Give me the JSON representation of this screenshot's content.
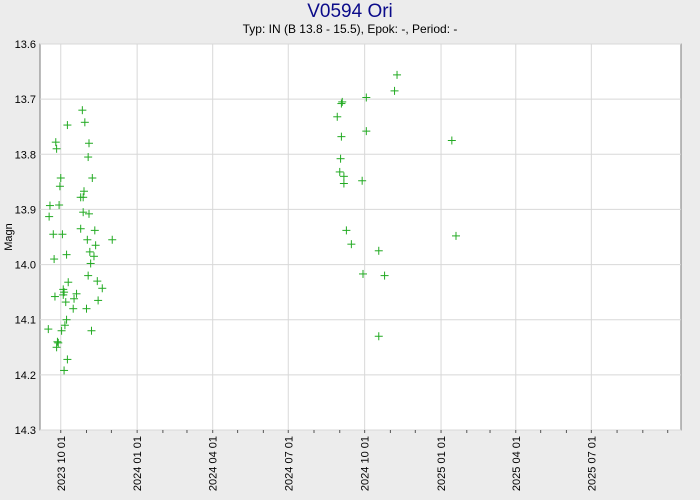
{
  "chart_data": {
    "type": "scatter",
    "title": "V0594 Ori",
    "subtitle": "Typ: IN (B 13.8 - 15.5), Epok: -, Period: -",
    "xlabel": "",
    "ylabel": "Magn",
    "x_is_date": true,
    "xlim": [
      "2023-09-06",
      "2025-10-17"
    ],
    "ylim": [
      13.6,
      14.3
    ],
    "y_inverted": true,
    "x_ticks": [
      "2023 10 01",
      "2024 01 01",
      "2024 04 01",
      "2024 07 01",
      "2024 10 01",
      "2025 01 01",
      "2025 04 01",
      "2025 07 01"
    ],
    "y_ticks": [
      "13.6",
      "13.7",
      "13.8",
      "13.9",
      "14.0",
      "14.1",
      "14.2",
      "14.3"
    ],
    "grid": true,
    "marker": "+",
    "marker_color": "#22aa22",
    "series": [
      {
        "points": [
          [
            "2023-09-16",
            14.117
          ],
          [
            "2023-09-17",
            13.913
          ],
          [
            "2023-09-18",
            13.893
          ],
          [
            "2023-09-22",
            13.945
          ],
          [
            "2023-09-23",
            13.99
          ],
          [
            "2023-09-24",
            14.058
          ],
          [
            "2023-09-25",
            13.778
          ],
          [
            "2023-09-26",
            13.79
          ],
          [
            "2023-09-26",
            14.15
          ],
          [
            "2023-09-27",
            14.14
          ],
          [
            "2023-09-28",
            14.142
          ],
          [
            "2023-09-29",
            13.892
          ],
          [
            "2023-09-30",
            13.858
          ],
          [
            "2023-10-01",
            13.843
          ],
          [
            "2023-10-02",
            14.12
          ],
          [
            "2023-10-03",
            13.945
          ],
          [
            "2023-10-04",
            14.045
          ],
          [
            "2023-10-04",
            14.055
          ],
          [
            "2023-10-05",
            14.192
          ],
          [
            "2023-10-05",
            14.05
          ],
          [
            "2023-10-06",
            14.11
          ],
          [
            "2023-10-07",
            14.068
          ],
          [
            "2023-10-08",
            13.982
          ],
          [
            "2023-10-08",
            14.1
          ],
          [
            "2023-10-09",
            13.747
          ],
          [
            "2023-10-09",
            14.172
          ],
          [
            "2023-10-10",
            14.032
          ],
          [
            "2023-10-16",
            14.08
          ],
          [
            "2023-10-17",
            14.062
          ],
          [
            "2023-10-20",
            14.053
          ],
          [
            "2023-10-25",
            13.878
          ],
          [
            "2023-10-25",
            13.935
          ],
          [
            "2023-10-27",
            13.72
          ],
          [
            "2023-10-28",
            13.878
          ],
          [
            "2023-10-28",
            13.905
          ],
          [
            "2023-10-29",
            13.867
          ],
          [
            "2023-10-30",
            13.742
          ],
          [
            "2023-11-01",
            14.08
          ],
          [
            "2023-11-02",
            13.955
          ],
          [
            "2023-11-03",
            13.805
          ],
          [
            "2023-11-03",
            14.02
          ],
          [
            "2023-11-04",
            13.908
          ],
          [
            "2023-11-04",
            13.78
          ],
          [
            "2023-11-05",
            13.977
          ],
          [
            "2023-11-06",
            13.998
          ],
          [
            "2023-11-07",
            14.12
          ],
          [
            "2023-11-08",
            13.843
          ],
          [
            "2023-11-10",
            13.985
          ],
          [
            "2023-11-11",
            13.938
          ],
          [
            "2023-11-12",
            13.965
          ],
          [
            "2023-11-14",
            14.03
          ],
          [
            "2023-11-15",
            14.065
          ],
          [
            "2023-11-20",
            14.043
          ],
          [
            "2023-12-02",
            13.955
          ],
          [
            "2024-08-29",
            13.732
          ],
          [
            "2024-09-01",
            13.832
          ],
          [
            "2024-09-02",
            13.808
          ],
          [
            "2024-09-03",
            13.708
          ],
          [
            "2024-09-04",
            13.705
          ],
          [
            "2024-09-03",
            13.768
          ],
          [
            "2024-09-06",
            13.84
          ],
          [
            "2024-09-06",
            13.853
          ],
          [
            "2024-09-09",
            13.938
          ],
          [
            "2024-09-15",
            13.963
          ],
          [
            "2024-09-28",
            13.848
          ],
          [
            "2024-09-29",
            14.017
          ],
          [
            "2024-10-03",
            13.697
          ],
          [
            "2024-10-03",
            13.758
          ],
          [
            "2024-10-18",
            13.975
          ],
          [
            "2024-10-18",
            14.13
          ],
          [
            "2024-10-25",
            14.02
          ],
          [
            "2024-11-06",
            13.685
          ],
          [
            "2024-11-09",
            13.656
          ],
          [
            "2025-01-14",
            13.775
          ],
          [
            "2025-01-19",
            13.948
          ]
        ]
      }
    ]
  }
}
